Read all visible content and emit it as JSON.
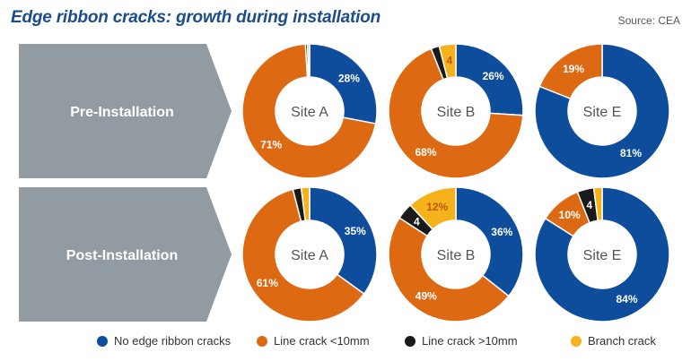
{
  "chart_data": {
    "type": "donut",
    "title": "Edge ribbon cracks: growth during installation",
    "source": "Source: CEA",
    "rows": [
      "Pre-Installation",
      "Post-Installation"
    ],
    "series": [
      {
        "name": "No edge ribbon cracks",
        "color": "#0e4d9c"
      },
      {
        "name": "Line crack <10mm",
        "color": "#dd6a13"
      },
      {
        "name": "Line crack >10mm",
        "color": "#1a1a1a"
      },
      {
        "name": "Branch crack",
        "color": "#f5b21b"
      }
    ],
    "charts": [
      {
        "row": "Pre-Installation",
        "site": "Site A",
        "values": [
          28,
          71,
          0.5,
          0.5
        ],
        "labels": [
          "28%",
          "71%",
          "",
          ""
        ]
      },
      {
        "row": "Pre-Installation",
        "site": "Site B",
        "values": [
          26,
          68,
          2,
          4
        ],
        "labels": [
          "26%",
          "68%",
          "",
          "4"
        ]
      },
      {
        "row": "Pre-Installation",
        "site": "Site E",
        "values": [
          81,
          19,
          0,
          0
        ],
        "labels": [
          "81%",
          "19%",
          "",
          ""
        ]
      },
      {
        "row": "Post-Installation",
        "site": "Site A",
        "values": [
          35,
          61,
          2,
          2
        ],
        "labels": [
          "35%",
          "61%",
          "",
          ""
        ]
      },
      {
        "row": "Post-Installation",
        "site": "Site B",
        "values": [
          36,
          49,
          4,
          12
        ],
        "labels": [
          "36%",
          "49%",
          "4",
          "12%"
        ]
      },
      {
        "row": "Post-Installation",
        "site": "Site E",
        "values": [
          84,
          10,
          4,
          2
        ],
        "labels": [
          "84%",
          "10%",
          "4",
          ""
        ]
      }
    ]
  }
}
